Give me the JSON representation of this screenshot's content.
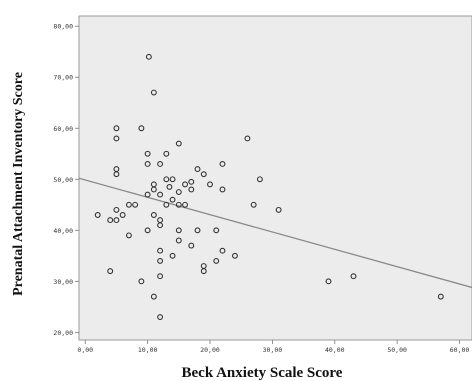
{
  "chart_data": {
    "type": "scatter",
    "title": "",
    "xlabel": "Beck Anxiety Scale Score",
    "ylabel": "Prenatal Attachment Inventory Score",
    "xlim": [
      -1,
      62
    ],
    "ylim": [
      18.5,
      82
    ],
    "x_ticks": [
      "0,00",
      "10,00",
      "20,00",
      "30,00",
      "40,00",
      "50,00",
      "60,00"
    ],
    "y_ticks": [
      "20,00",
      "30,00",
      "40,00",
      "50,00",
      "60,00",
      "70,00",
      "80,00"
    ],
    "grid": false,
    "plot_background": "#ececec",
    "marker_color": "#333333",
    "fit_line": {
      "x": [
        -1,
        62
      ],
      "y": [
        50.2,
        28.8
      ],
      "color": "#8a8a8a"
    },
    "points": [
      [
        10.2,
        74
      ],
      [
        11,
        67
      ],
      [
        5,
        60
      ],
      [
        9,
        60
      ],
      [
        5,
        58
      ],
      [
        26,
        58
      ],
      [
        15,
        57
      ],
      [
        10,
        55
      ],
      [
        13,
        55
      ],
      [
        12,
        53
      ],
      [
        22,
        53
      ],
      [
        10,
        53
      ],
      [
        5,
        52
      ],
      [
        18,
        52
      ],
      [
        19,
        51
      ],
      [
        5,
        51
      ],
      [
        13,
        50
      ],
      [
        14,
        50
      ],
      [
        28,
        50
      ],
      [
        17,
        49.5
      ],
      [
        11,
        49
      ],
      [
        16,
        49
      ],
      [
        20,
        49
      ],
      [
        13.5,
        48.5
      ],
      [
        11,
        48
      ],
      [
        17,
        48
      ],
      [
        22,
        48
      ],
      [
        15,
        47.5
      ],
      [
        10,
        47
      ],
      [
        12,
        47
      ],
      [
        14,
        46
      ],
      [
        7,
        45
      ],
      [
        8,
        45
      ],
      [
        13,
        45
      ],
      [
        15,
        45
      ],
      [
        16,
        45
      ],
      [
        27,
        45
      ],
      [
        5,
        44
      ],
      [
        31,
        44
      ],
      [
        2,
        43
      ],
      [
        11,
        43
      ],
      [
        6,
        43
      ],
      [
        4,
        42
      ],
      [
        5,
        42
      ],
      [
        12,
        42
      ],
      [
        12,
        41
      ],
      [
        15,
        40
      ],
      [
        21,
        40
      ],
      [
        10,
        40
      ],
      [
        18,
        40
      ],
      [
        7,
        39
      ],
      [
        15,
        38
      ],
      [
        17,
        37
      ],
      [
        12,
        36
      ],
      [
        22,
        36
      ],
      [
        14,
        35
      ],
      [
        24,
        35
      ],
      [
        12,
        34
      ],
      [
        21,
        34
      ],
      [
        19,
        33
      ],
      [
        19,
        32
      ],
      [
        4,
        32
      ],
      [
        12,
        31
      ],
      [
        43,
        31
      ],
      [
        9,
        30
      ],
      [
        39,
        30
      ],
      [
        11,
        27
      ],
      [
        57,
        27
      ],
      [
        12,
        23
      ]
    ]
  }
}
